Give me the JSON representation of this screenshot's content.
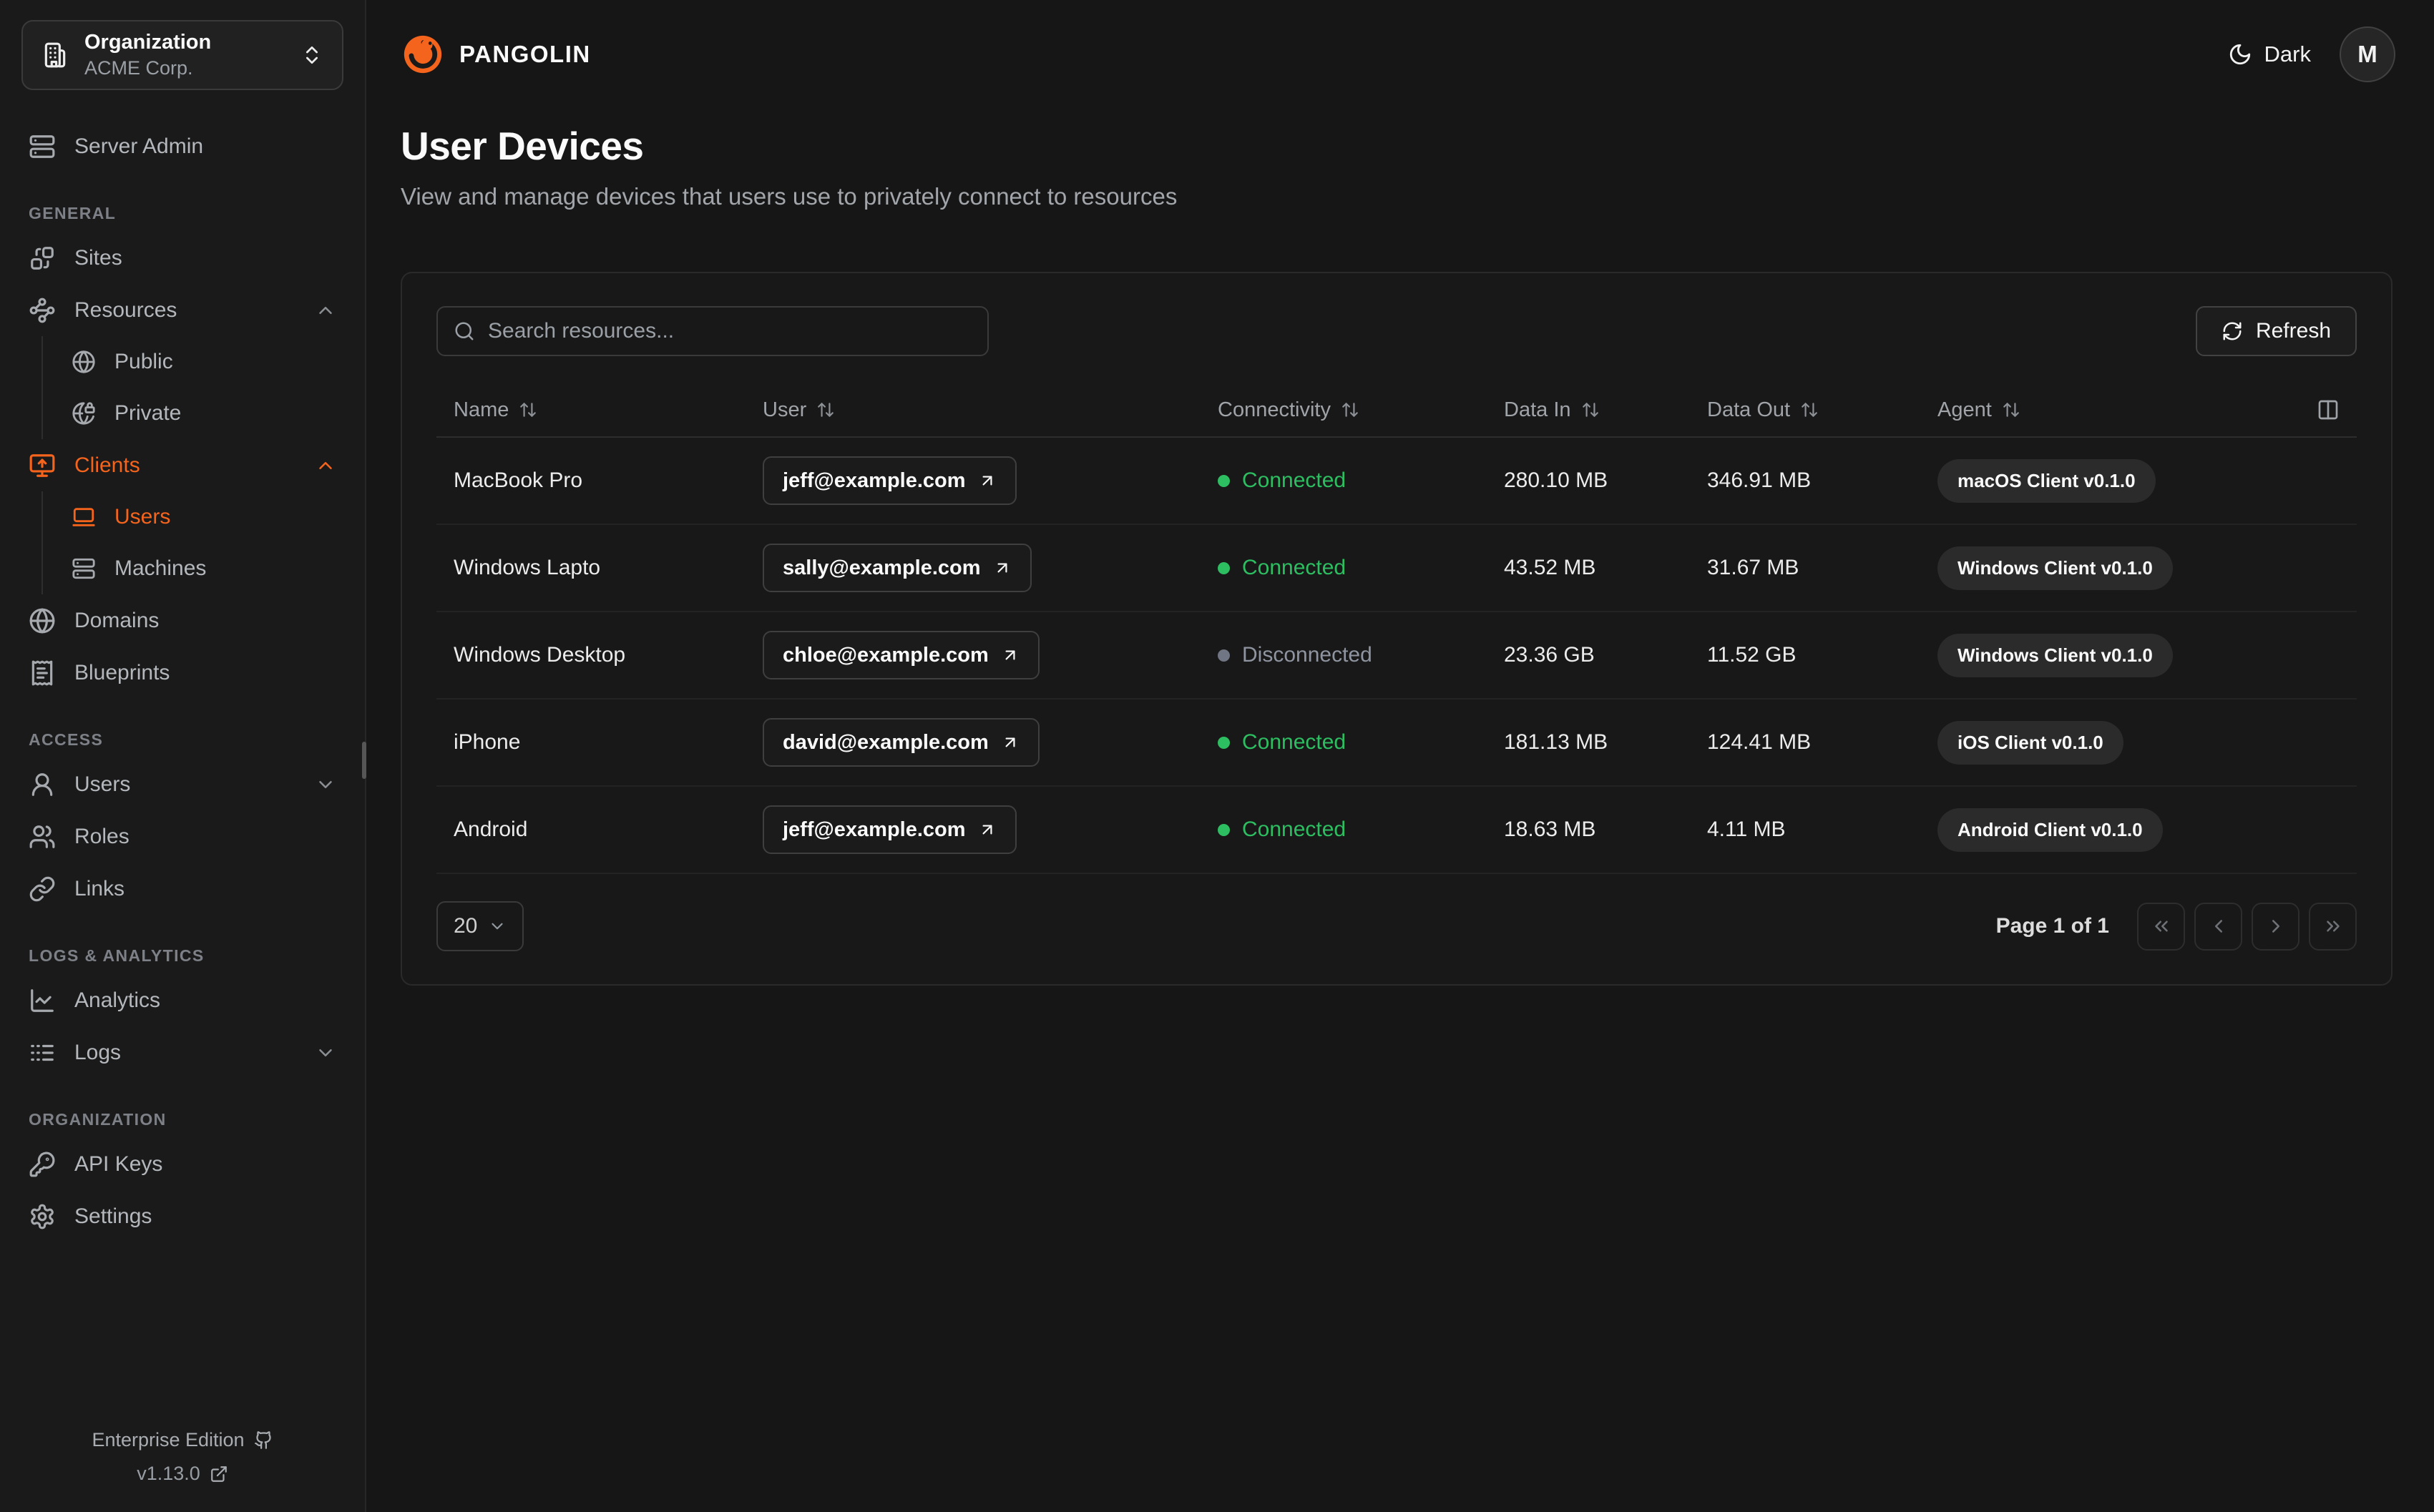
{
  "header": {
    "brand": "PANGOLIN",
    "theme_label": "Dark",
    "avatar_initial": "M"
  },
  "page": {
    "title": "User Devices",
    "subtitle": "View and manage devices that users use to privately connect to resources"
  },
  "sidebar": {
    "org": {
      "label": "Organization",
      "value": "ACME Corp.",
      "icon": "building-icon"
    },
    "top_items": [
      {
        "id": "server-admin",
        "label": "Server Admin",
        "icon": "server-icon"
      }
    ],
    "sections": [
      {
        "label": "GENERAL",
        "items": [
          {
            "id": "sites",
            "label": "Sites",
            "icon": "sites-icon"
          },
          {
            "id": "resources",
            "label": "Resources",
            "icon": "waypoints-icon",
            "chevron": "up",
            "children": [
              {
                "id": "public",
                "label": "Public",
                "icon": "globe-icon"
              },
              {
                "id": "private",
                "label": "Private",
                "icon": "globe-lock-icon"
              }
            ]
          },
          {
            "id": "clients",
            "label": "Clients",
            "icon": "monitor-up-icon",
            "chevron": "up",
            "active": true,
            "children": [
              {
                "id": "users",
                "label": "Users",
                "icon": "laptop-icon",
                "active": true
              },
              {
                "id": "machines",
                "label": "Machines",
                "icon": "server-icon"
              }
            ]
          },
          {
            "id": "domains",
            "label": "Domains",
            "icon": "globe-icon"
          },
          {
            "id": "blueprints",
            "label": "Blueprints",
            "icon": "receipt-icon"
          }
        ]
      },
      {
        "label": "ACCESS",
        "items": [
          {
            "id": "users-access",
            "label": "Users",
            "icon": "user-icon",
            "chevron": "down"
          },
          {
            "id": "roles",
            "label": "Roles",
            "icon": "users-icon"
          },
          {
            "id": "links",
            "label": "Links",
            "icon": "link-icon"
          }
        ]
      },
      {
        "label": "LOGS & ANALYTICS",
        "items": [
          {
            "id": "analytics",
            "label": "Analytics",
            "icon": "chart-icon"
          },
          {
            "id": "logs",
            "label": "Logs",
            "icon": "list-icon",
            "chevron": "down"
          }
        ]
      },
      {
        "label": "ORGANIZATION",
        "items": [
          {
            "id": "api-keys",
            "label": "API Keys",
            "icon": "key-icon"
          },
          {
            "id": "settings",
            "label": "Settings",
            "icon": "gear-icon"
          }
        ]
      }
    ],
    "footer": {
      "edition": "Enterprise Edition",
      "version": "v1.13.0"
    }
  },
  "toolbar": {
    "search_placeholder": "Search resources...",
    "refresh_label": "Refresh"
  },
  "table": {
    "columns": [
      {
        "key": "name",
        "label": "Name",
        "sortable": true
      },
      {
        "key": "user",
        "label": "User",
        "sortable": true
      },
      {
        "key": "connectivity",
        "label": "Connectivity",
        "sortable": true
      },
      {
        "key": "data_in",
        "label": "Data In",
        "sortable": true
      },
      {
        "key": "data_out",
        "label": "Data Out",
        "sortable": true
      },
      {
        "key": "agent",
        "label": "Agent",
        "sortable": true
      }
    ],
    "rows": [
      {
        "name": "MacBook Pro",
        "user": "jeff@example.com",
        "connectivity": "Connected",
        "status": "connected",
        "data_in": "280.10 MB",
        "data_out": "346.91 MB",
        "agent": "macOS Client v0.1.0"
      },
      {
        "name": "Windows Lapto",
        "user": "sally@example.com",
        "connectivity": "Connected",
        "status": "connected",
        "data_in": "43.52 MB",
        "data_out": "31.67 MB",
        "agent": "Windows Client v0.1.0"
      },
      {
        "name": "Windows Desktop",
        "user": "chloe@example.com",
        "connectivity": "Disconnected",
        "status": "disconnected",
        "data_in": "23.36 GB",
        "data_out": "11.52 GB",
        "agent": "Windows Client v0.1.0"
      },
      {
        "name": "iPhone",
        "user": "david@example.com",
        "connectivity": "Connected",
        "status": "connected",
        "data_in": "181.13 MB",
        "data_out": "124.41 MB",
        "agent": "iOS Client v0.1.0"
      },
      {
        "name": "Android",
        "user": "jeff@example.com",
        "connectivity": "Connected",
        "status": "connected",
        "data_in": "18.63 MB",
        "data_out": "4.11 MB",
        "agent": "Android Client v0.1.0"
      }
    ]
  },
  "pagination": {
    "page_size": "20",
    "page_label": "Page 1 of 1"
  },
  "colors": {
    "accent": "#f4641c",
    "connected": "#2ebe62",
    "disconnected": "#8f95a0"
  }
}
